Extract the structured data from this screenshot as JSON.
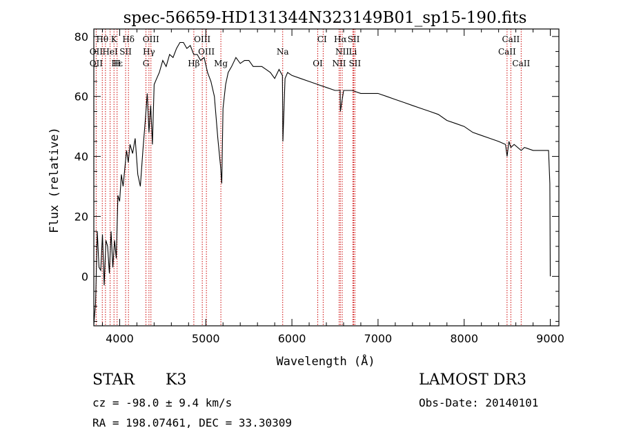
{
  "chart_data": {
    "type": "line",
    "title": "spec-56659-HD131344N323149B01_sp15-190.fits",
    "xlabel": "Wavelength (Å)",
    "ylabel": "Flux (relative)",
    "xlim": [
      3700,
      9100
    ],
    "ylim": [
      -16.5,
      82.5
    ],
    "xticks": [
      4000,
      5000,
      6000,
      7000,
      8000,
      9000
    ],
    "yticks": [
      0,
      20,
      40,
      60,
      80
    ],
    "grid": false,
    "legend": "none",
    "series": [
      {
        "name": "spectrum",
        "x": [
          3700,
          3720,
          3740,
          3760,
          3780,
          3800,
          3820,
          3840,
          3860,
          3880,
          3900,
          3920,
          3940,
          3960,
          3980,
          4000,
          4020,
          4040,
          4060,
          4080,
          4100,
          4120,
          4150,
          4180,
          4210,
          4240,
          4270,
          4300,
          4320,
          4340,
          4360,
          4380,
          4400,
          4430,
          4460,
          4500,
          4540,
          4580,
          4620,
          4660,
          4700,
          4740,
          4780,
          4820,
          4860,
          4900,
          4940,
          4980,
          5020,
          5060,
          5100,
          5140,
          5170,
          5185,
          5200,
          5230,
          5260,
          5300,
          5350,
          5400,
          5450,
          5500,
          5550,
          5600,
          5650,
          5700,
          5750,
          5800,
          5850,
          5890,
          5895,
          5920,
          5950,
          6000,
          6100,
          6200,
          6300,
          6400,
          6500,
          6560,
          6563,
          6600,
          6700,
          6800,
          6900,
          7000,
          7100,
          7200,
          7300,
          7400,
          7500,
          7600,
          7700,
          7800,
          7900,
          8000,
          8100,
          8200,
          8300,
          8400,
          8480,
          8498,
          8520,
          8542,
          8580,
          8662,
          8700,
          8800,
          8900,
          8980,
          8995,
          9000
        ],
        "y": [
          -16,
          -9,
          15,
          3,
          2,
          14,
          -3,
          12,
          10,
          1,
          15,
          3,
          12,
          6,
          27,
          25,
          34,
          30,
          36,
          42,
          38,
          44,
          41,
          46,
          34,
          30,
          42,
          53,
          61,
          48,
          57,
          44,
          64,
          66,
          68,
          72,
          70,
          74,
          73,
          76,
          78,
          78,
          76,
          77,
          74,
          74,
          72,
          73,
          68,
          65,
          60,
          46,
          37,
          31,
          56,
          64,
          68,
          70,
          73,
          71,
          72,
          72,
          70,
          70,
          70,
          69,
          68,
          66,
          69,
          67,
          45,
          66,
          68,
          67,
          66,
          65,
          64,
          63,
          62,
          62,
          55,
          62,
          62,
          61,
          61,
          61,
          60,
          59,
          58,
          57,
          56,
          55,
          54,
          52,
          51,
          50,
          48,
          47,
          46,
          45,
          44,
          40,
          45,
          43,
          44,
          42,
          43,
          42,
          42,
          42,
          31,
          0
        ]
      }
    ],
    "lines": [
      {
        "label": "Hθ",
        "x": 3798,
        "row": 1
      },
      {
        "label": "K",
        "x": 3934,
        "row": 1
      },
      {
        "label": "Hδ",
        "x": 4102,
        "row": 1
      },
      {
        "label": "OIII",
        "x": 4363,
        "row": 1
      },
      {
        "label": "OIII",
        "x": 4959,
        "row": 1
      },
      {
        "label": "CI",
        "x": 6350,
        "row": 1
      },
      {
        "label": "Hα",
        "x": 6563,
        "row": 1
      },
      {
        "label": "SII",
        "x": 6717,
        "row": 1
      },
      {
        "label": "CaII",
        "x": 8542,
        "row": 1
      },
      {
        "label": "OII",
        "x": 3727,
        "row": 2
      },
      {
        "label": "HeI",
        "x": 3889,
        "row": 2
      },
      {
        "label": "SII",
        "x": 4069,
        "row": 2
      },
      {
        "label": "Hγ",
        "x": 4340,
        "row": 2
      },
      {
        "label": "OIII",
        "x": 5007,
        "row": 2
      },
      {
        "label": "Na",
        "x": 5893,
        "row": 2
      },
      {
        "label": "NII",
        "x": 6584,
        "row": 2
      },
      {
        "label": "Li",
        "x": 6708,
        "row": 2
      },
      {
        "label": "CaII",
        "x": 8498,
        "row": 2
      },
      {
        "label": "OII",
        "x": 3727,
        "row": 3
      },
      {
        "label": "Hε",
        "x": 3970,
        "row": 3
      },
      {
        "label": "H",
        "x": 3969,
        "row": 3
      },
      {
        "label": "G",
        "x": 4305,
        "row": 3
      },
      {
        "label": "Hβ",
        "x": 4861,
        "row": 3
      },
      {
        "label": "Mg",
        "x": 5175,
        "row": 3
      },
      {
        "label": "OI",
        "x": 6300,
        "row": 3
      },
      {
        "label": "NII",
        "x": 6548,
        "row": 3
      },
      {
        "label": "SII",
        "x": 6731,
        "row": 3
      },
      {
        "label": "CaII",
        "x": 8662,
        "row": 3
      }
    ],
    "marker_x": [
      3727,
      3798,
      3835,
      3889,
      3934,
      3970,
      4069,
      4102,
      4305,
      4340,
      4363,
      4861,
      4959,
      5007,
      5175,
      5893,
      6300,
      6363,
      6548,
      6563,
      6584,
      6708,
      6717,
      6731,
      8498,
      8542,
      8662
    ]
  },
  "info": {
    "object_class": "STAR",
    "subclass": "K3",
    "survey": "LAMOST DR3",
    "cz": "cz = -98.0 ± 9.4 km/s",
    "obs_date": "Obs-Date: 20140101",
    "coords": "RA = 198.07461, DEC =  33.30309"
  }
}
